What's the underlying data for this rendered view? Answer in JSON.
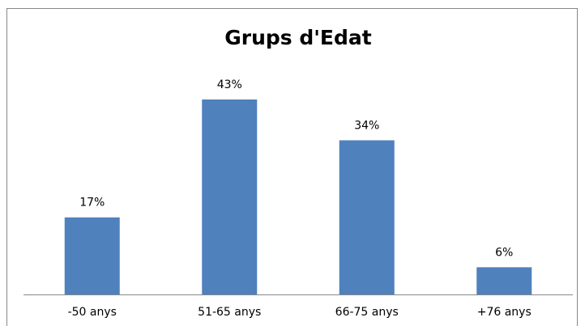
{
  "chart_data": {
    "type": "bar",
    "title": "Grups d'Edat",
    "categories": [
      "-50 anys",
      "51-65 anys",
      "66-75 anys",
      "+76 anys"
    ],
    "values": [
      17,
      43,
      34,
      6
    ],
    "value_labels": [
      "17%",
      "43%",
      "34%",
      "6%"
    ],
    "color": "#4f81bd"
  }
}
